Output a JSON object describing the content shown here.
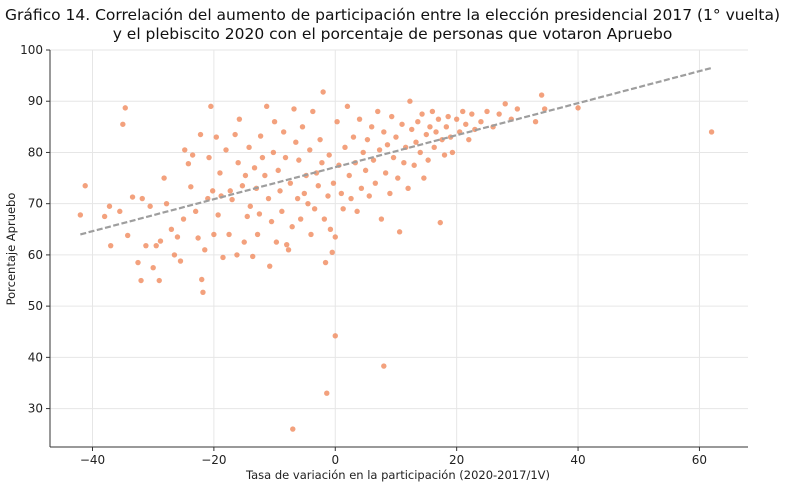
{
  "chart_data": {
    "type": "scatter",
    "title_line1": "Gráfico 14. Correlación del aumento de participación entre la elección presidencial 2017 (1° vuelta)",
    "title_line2": "y el plebiscito 2020 con el porcentaje de personas que votaron Apruebo",
    "xlabel": "Tasa de variación en la participación (2020-2017/1V)",
    "ylabel": "Porcentaje Apruebo",
    "xlim": [
      -47,
      68
    ],
    "ylim": [
      22.5,
      100
    ],
    "xticks": [
      -40,
      -20,
      0,
      20,
      40,
      60
    ],
    "yticks": [
      30,
      40,
      50,
      60,
      70,
      80,
      90,
      100
    ],
    "xtick_labels": [
      "−40",
      "−20",
      "0",
      "20",
      "40",
      "60"
    ],
    "ytick_labels": [
      "30",
      "40",
      "50",
      "60",
      "70",
      "80",
      "90",
      "100"
    ],
    "grid": true,
    "point_color": "#f08a5d",
    "trend_color": "#9e9e9e",
    "trend_line": {
      "x": [
        -42,
        62
      ],
      "y": [
        64.0,
        96.5
      ]
    },
    "points": [
      [
        -42,
        67.8
      ],
      [
        -41.2,
        73.5
      ],
      [
        -38,
        67.5
      ],
      [
        -37.2,
        69.5
      ],
      [
        -37,
        61.8
      ],
      [
        -35.5,
        68.5
      ],
      [
        -35,
        85.5
      ],
      [
        -34.6,
        88.7
      ],
      [
        -34.2,
        63.8
      ],
      [
        -33.4,
        71.3
      ],
      [
        -32.5,
        58.5
      ],
      [
        -32,
        55
      ],
      [
        -31.8,
        71
      ],
      [
        -31.2,
        61.8
      ],
      [
        -30.5,
        69.5
      ],
      [
        -30,
        57.5
      ],
      [
        -29.5,
        61.8
      ],
      [
        -29,
        55
      ],
      [
        -28.8,
        62.7
      ],
      [
        -28.2,
        75
      ],
      [
        -27.8,
        70
      ],
      [
        -27,
        65
      ],
      [
        -26.5,
        60
      ],
      [
        -26,
        63.5
      ],
      [
        -25.5,
        58.8
      ],
      [
        -25,
        67
      ],
      [
        -24.8,
        80.5
      ],
      [
        -24.2,
        77.8
      ],
      [
        -23.8,
        73.3
      ],
      [
        -23.5,
        79.5
      ],
      [
        -23,
        68.5
      ],
      [
        -22.6,
        63.3
      ],
      [
        -22.2,
        83.5
      ],
      [
        -22,
        55.2
      ],
      [
        -21.8,
        52.7
      ],
      [
        -21.5,
        61
      ],
      [
        -21,
        71
      ],
      [
        -20.8,
        79
      ],
      [
        -20.5,
        89
      ],
      [
        -20.2,
        72.5
      ],
      [
        -20,
        64
      ],
      [
        -19.6,
        83
      ],
      [
        -19.3,
        67.8
      ],
      [
        -19,
        76
      ],
      [
        -18.8,
        71.5
      ],
      [
        -18.5,
        59.5
      ],
      [
        -18,
        80.5
      ],
      [
        -17.5,
        64
      ],
      [
        -17.3,
        72.5
      ],
      [
        -17,
        70.8
      ],
      [
        -16.5,
        83.5
      ],
      [
        -16.2,
        60
      ],
      [
        -16,
        78
      ],
      [
        -15.8,
        86.5
      ],
      [
        -15.3,
        73.5
      ],
      [
        -15,
        62.5
      ],
      [
        -14.8,
        75.5
      ],
      [
        -14.5,
        67.5
      ],
      [
        -14.2,
        81
      ],
      [
        -14,
        69.5
      ],
      [
        -13.6,
        59.7
      ],
      [
        -13.3,
        77
      ],
      [
        -13,
        73
      ],
      [
        -12.8,
        64
      ],
      [
        -12.5,
        68
      ],
      [
        -12.3,
        83.2
      ],
      [
        -12,
        79
      ],
      [
        -11.6,
        75.5
      ],
      [
        -11.3,
        89
      ],
      [
        -11,
        71
      ],
      [
        -10.8,
        57.8
      ],
      [
        -10.5,
        66.5
      ],
      [
        -10.2,
        80
      ],
      [
        -10,
        86
      ],
      [
        -9.7,
        62.5
      ],
      [
        -9.4,
        76.5
      ],
      [
        -9.1,
        72.5
      ],
      [
        -8.8,
        68.5
      ],
      [
        -8.5,
        84
      ],
      [
        -8.2,
        79
      ],
      [
        -8,
        62
      ],
      [
        -7.7,
        61
      ],
      [
        -7.4,
        74
      ],
      [
        -7.1,
        65.5
      ],
      [
        -7,
        26
      ],
      [
        -6.8,
        88.5
      ],
      [
        -6.5,
        82
      ],
      [
        -6.2,
        71
      ],
      [
        -6,
        78.5
      ],
      [
        -5.7,
        67
      ],
      [
        -5.4,
        85
      ],
      [
        -5.1,
        72
      ],
      [
        -4.8,
        75.5
      ],
      [
        -4.5,
        70
      ],
      [
        -4.2,
        80.5
      ],
      [
        -4,
        64
      ],
      [
        -3.7,
        88
      ],
      [
        -3.4,
        69
      ],
      [
        -3.1,
        76
      ],
      [
        -2.8,
        73.5
      ],
      [
        -2.5,
        82.5
      ],
      [
        -2.2,
        78
      ],
      [
        -2,
        91.8
      ],
      [
        -1.8,
        67
      ],
      [
        -1.6,
        58.5
      ],
      [
        -1.4,
        33
      ],
      [
        -1.2,
        71.5
      ],
      [
        -1,
        79.5
      ],
      [
        -0.8,
        65
      ],
      [
        -0.5,
        60.5
      ],
      [
        -0.3,
        74
      ],
      [
        0,
        63.5
      ],
      [
        0,
        44.2
      ],
      [
        0.3,
        86
      ],
      [
        0.6,
        77.5
      ],
      [
        1,
        72
      ],
      [
        1.3,
        69
      ],
      [
        1.6,
        81
      ],
      [
        2,
        89
      ],
      [
        2.3,
        75.5
      ],
      [
        2.6,
        71
      ],
      [
        3,
        83
      ],
      [
        3.3,
        78
      ],
      [
        3.6,
        68.5
      ],
      [
        4,
        86.5
      ],
      [
        4.3,
        73
      ],
      [
        4.6,
        80
      ],
      [
        5,
        76.5
      ],
      [
        5.3,
        82.5
      ],
      [
        5.6,
        71.5
      ],
      [
        6,
        85
      ],
      [
        6.3,
        78.5
      ],
      [
        6.6,
        74
      ],
      [
        7,
        88
      ],
      [
        7.3,
        80.5
      ],
      [
        7.6,
        67
      ],
      [
        8,
        38.3
      ],
      [
        8,
        84
      ],
      [
        8.3,
        76
      ],
      [
        8.6,
        81.5
      ],
      [
        9,
        72
      ],
      [
        9.3,
        87
      ],
      [
        9.6,
        79
      ],
      [
        10,
        83
      ],
      [
        10.3,
        75
      ],
      [
        10.6,
        64.5
      ],
      [
        11,
        85.5
      ],
      [
        11.3,
        78
      ],
      [
        11.6,
        81
      ],
      [
        12,
        73
      ],
      [
        12.3,
        90
      ],
      [
        12.6,
        84.5
      ],
      [
        13,
        77.5
      ],
      [
        13.3,
        82
      ],
      [
        13.6,
        86
      ],
      [
        14,
        80
      ],
      [
        14.3,
        87.5
      ],
      [
        14.6,
        75
      ],
      [
        15,
        83.5
      ],
      [
        15.3,
        78.5
      ],
      [
        15.6,
        85
      ],
      [
        16,
        88
      ],
      [
        16.3,
        81
      ],
      [
        16.6,
        84
      ],
      [
        17,
        86.5
      ],
      [
        17.3,
        66.3
      ],
      [
        17.6,
        82.5
      ],
      [
        18,
        79.5
      ],
      [
        18.3,
        85
      ],
      [
        18.6,
        87
      ],
      [
        19,
        83
      ],
      [
        19.3,
        80
      ],
      [
        20,
        86.5
      ],
      [
        20.5,
        84
      ],
      [
        21,
        88
      ],
      [
        21.5,
        85.5
      ],
      [
        22,
        82.5
      ],
      [
        22.5,
        87.5
      ],
      [
        23,
        84.5
      ],
      [
        24,
        86
      ],
      [
        25,
        88
      ],
      [
        26,
        85
      ],
      [
        27,
        87.5
      ],
      [
        28,
        89.5
      ],
      [
        29,
        86.5
      ],
      [
        30,
        88.5
      ],
      [
        33,
        86
      ],
      [
        34,
        91.2
      ],
      [
        34.5,
        88.5
      ],
      [
        40,
        88.7
      ],
      [
        62,
        84
      ]
    ]
  }
}
